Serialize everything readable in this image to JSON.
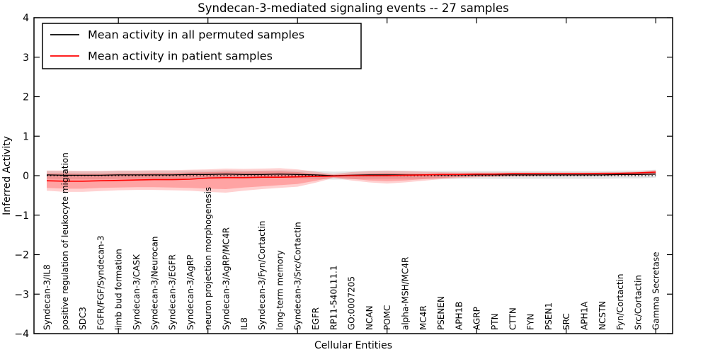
{
  "chart_data": {
    "type": "line",
    "title": "Syndecan-3-mediated signaling events -- 27 samples",
    "xlabel": "Cellular Entities",
    "ylabel": "Inferred Activity",
    "ylim": [
      -4,
      4
    ],
    "grid": false,
    "legend_position": "upper left",
    "ytick_values": [
      4,
      3,
      2,
      1,
      0,
      -1,
      -2,
      -3,
      -4
    ],
    "ytick_labels": [
      "4",
      "3",
      "2",
      "1",
      "0",
      "−1",
      "−2",
      "−3",
      "−4"
    ],
    "xtick_indices": [
      4,
      9,
      14,
      19,
      24,
      29,
      34
    ],
    "zero_line": {
      "value": 0,
      "style": "dotted",
      "color": "#000000"
    },
    "categories": [
      "Syndecan-3/IL8",
      "positive regulation of leukocyte migration",
      "SDC3",
      "FGFR/FGF/Syndecan-3",
      "limb bud formation",
      "Syndecan-3/CASK",
      "Syndecan-3/Neurocan",
      "Syndecan-3/EGFR",
      "Syndecan-3/AgRP",
      "neuron projection morphogenesis",
      "Syndecan-3/AgRP/MC4R",
      "IL8",
      "Syndecan-3/Fyn/Cortactin",
      "long-term memory",
      "Syndecan-3/Src/Cortactin",
      "EGFR",
      "RP11-540L11.1",
      "GO:0007205",
      "NCAN",
      "POMC",
      "alpha-MSH/MC4R",
      "MC4R",
      "PSENEN",
      "APH1B",
      "AGRP",
      "PTN",
      "CTTN",
      "FYN",
      "PSEN1",
      "SRC",
      "APH1A",
      "NCSTN",
      "Fyn/Cortactin",
      "Src/Cortactin",
      "Gamma Secretase"
    ],
    "series": [
      {
        "name": "Mean activity in all permuted samples",
        "color": "#000000",
        "values": [
          0.02,
          0.01,
          0.01,
          0.01,
          0.02,
          0.02,
          0.02,
          0.02,
          0.03,
          0.03,
          0.04,
          0.03,
          0.03,
          0.04,
          0.03,
          0.02,
          0.0,
          0.01,
          0.02,
          0.02,
          0.02,
          0.02,
          0.02,
          0.02,
          0.02,
          0.02,
          0.02,
          0.02,
          0.02,
          0.02,
          0.02,
          0.02,
          0.03,
          0.03,
          0.04
        ]
      },
      {
        "name": "Mean activity in patient samples",
        "color": "#ff0000",
        "values": [
          -0.13,
          -0.14,
          -0.14,
          -0.13,
          -0.12,
          -0.11,
          -0.1,
          -0.1,
          -0.09,
          -0.06,
          -0.05,
          -0.05,
          -0.04,
          -0.04,
          -0.03,
          -0.02,
          -0.01,
          0.0,
          0.0,
          0.0,
          0.01,
          0.02,
          0.03,
          0.03,
          0.04,
          0.04,
          0.05,
          0.05,
          0.05,
          0.05,
          0.05,
          0.06,
          0.06,
          0.07,
          0.09
        ]
      }
    ],
    "bands": [
      {
        "name": "permuted-samples-range",
        "color": "rgba(0,0,0,0.10)",
        "top": [
          0.12,
          0.11,
          0.11,
          0.11,
          0.12,
          0.12,
          0.12,
          0.12,
          0.13,
          0.13,
          0.14,
          0.13,
          0.13,
          0.14,
          0.13,
          0.12,
          0.1,
          0.11,
          0.12,
          0.12,
          0.12,
          0.12,
          0.12,
          0.12,
          0.12,
          0.12,
          0.12,
          0.12,
          0.12,
          0.12,
          0.12,
          0.12,
          0.13,
          0.13,
          0.15
        ],
        "bottom": [
          -0.08,
          -0.09,
          -0.09,
          -0.09,
          -0.08,
          -0.08,
          -0.08,
          -0.08,
          -0.07,
          -0.07,
          -0.06,
          -0.07,
          -0.07,
          -0.06,
          -0.07,
          -0.08,
          -0.1,
          -0.09,
          -0.08,
          -0.08,
          -0.08,
          -0.08,
          -0.08,
          -0.08,
          -0.08,
          -0.08,
          -0.08,
          -0.08,
          -0.08,
          -0.08,
          -0.08,
          -0.08,
          -0.07,
          -0.07,
          -0.05
        ]
      },
      {
        "name": "patient-samples-range-outer",
        "color": "rgba(255,0,0,0.18)",
        "top": [
          0.13,
          0.13,
          0.12,
          0.12,
          0.13,
          0.13,
          0.14,
          0.14,
          0.15,
          0.16,
          0.18,
          0.17,
          0.18,
          0.19,
          0.16,
          0.1,
          0.04,
          0.09,
          0.12,
          0.13,
          0.12,
          0.1,
          0.09,
          0.08,
          0.08,
          0.08,
          0.08,
          0.08,
          0.08,
          0.08,
          0.08,
          0.08,
          0.09,
          0.1,
          0.14
        ],
        "bottom": [
          -0.38,
          -0.41,
          -0.41,
          -0.39,
          -0.37,
          -0.36,
          -0.36,
          -0.37,
          -0.38,
          -0.41,
          -0.43,
          -0.38,
          -0.34,
          -0.31,
          -0.28,
          -0.18,
          -0.06,
          -0.12,
          -0.17,
          -0.2,
          -0.17,
          -0.13,
          -0.09,
          -0.06,
          -0.04,
          -0.03,
          -0.02,
          -0.02,
          -0.01,
          -0.01,
          -0.01,
          0.0,
          0.0,
          0.01,
          0.02
        ]
      },
      {
        "name": "patient-samples-range-inner",
        "color": "rgba(255,0,0,0.22)",
        "top": [
          0.06,
          0.06,
          0.05,
          0.05,
          0.06,
          0.06,
          0.07,
          0.07,
          0.08,
          0.09,
          0.1,
          0.1,
          0.11,
          0.11,
          0.09,
          0.05,
          0.02,
          0.04,
          0.06,
          0.07,
          0.06,
          0.05,
          0.05,
          0.05,
          0.05,
          0.05,
          0.06,
          0.06,
          0.06,
          0.06,
          0.06,
          0.07,
          0.07,
          0.08,
          0.11
        ],
        "bottom": [
          -0.31,
          -0.33,
          -0.33,
          -0.31,
          -0.3,
          -0.29,
          -0.29,
          -0.3,
          -0.31,
          -0.33,
          -0.34,
          -0.3,
          -0.27,
          -0.24,
          -0.21,
          -0.13,
          -0.04,
          -0.08,
          -0.12,
          -0.14,
          -0.12,
          -0.09,
          -0.06,
          -0.03,
          -0.02,
          -0.01,
          0.0,
          0.0,
          0.01,
          0.01,
          0.01,
          0.02,
          0.02,
          0.03,
          0.05
        ]
      }
    ],
    "legend": {
      "entries": [
        {
          "label": "Mean activity in all permuted samples",
          "color": "#000000"
        },
        {
          "label": "Mean activity in patient samples",
          "color": "#ff0000"
        }
      ]
    }
  }
}
